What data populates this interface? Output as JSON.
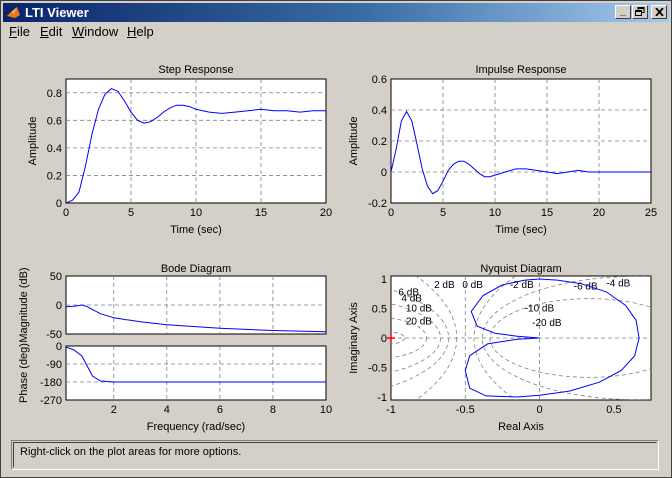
{
  "window": {
    "title": "LTI Viewer",
    "controls": {
      "minimize": "_",
      "restore": "🗗",
      "close": "✕"
    }
  },
  "menu": {
    "items": [
      {
        "label": "File",
        "mnemonic": "F"
      },
      {
        "label": "Edit",
        "mnemonic": "E"
      },
      {
        "label": "Window",
        "mnemonic": "W"
      },
      {
        "label": "Help",
        "mnemonic": "H"
      }
    ]
  },
  "plots": {
    "step": {
      "title": "Step Response",
      "xlabel": "Time (sec)",
      "ylabel": "Amplitude",
      "xticks": [
        "0",
        "5",
        "10",
        "15",
        "20"
      ],
      "yticks": [
        "0",
        "0.2",
        "0.4",
        "0.6",
        "0.8"
      ]
    },
    "impulse": {
      "title": "Impulse Response",
      "xlabel": "Time (sec)",
      "ylabel": "Amplitude",
      "xticks": [
        "0",
        "5",
        "10",
        "15",
        "20",
        "25"
      ],
      "yticks": [
        "-0.2",
        "0",
        "0.2",
        "0.4",
        "0.6"
      ]
    },
    "bode": {
      "title": "Bode Diagram",
      "xlabel": "Frequency (rad/sec)",
      "ylabel_mag": "Magnitude (dB)",
      "ylabel_phase": "Phase (deg)",
      "xticks": [
        "2",
        "4",
        "6",
        "8",
        "10"
      ],
      "mag_yticks": [
        "50",
        "0",
        "-50"
      ],
      "phase_yticks": [
        "0",
        "-90",
        "-180",
        "-270"
      ]
    },
    "nyquist": {
      "title": "Nyquist Diagram",
      "xlabel": "Real Axis",
      "ylabel": "Imaginary Axis",
      "xticks": [
        "-1",
        "-0.5",
        "0",
        "0.5"
      ],
      "yticks": [
        "1",
        "0.5",
        "0",
        "-0.5",
        "-1"
      ],
      "db_labels": [
        "0 dB",
        "2 dB",
        "-2 dB",
        "4 dB",
        "-4 dB",
        "6 dB",
        "-6 dB",
        "10 dB",
        "-10 dB",
        "20 dB",
        "-20 dB"
      ]
    }
  },
  "status": {
    "text": "Right-click on the plot areas for more options."
  },
  "chart_data": [
    {
      "type": "line",
      "title": "Step Response",
      "xlabel": "Time (sec)",
      "ylabel": "Amplitude",
      "xlim": [
        0,
        20
      ],
      "ylim": [
        0,
        0.9
      ],
      "x": [
        0,
        0.5,
        1,
        1.5,
        2,
        2.5,
        3,
        3.5,
        4,
        4.5,
        5,
        5.5,
        6,
        6.5,
        7,
        7.5,
        8,
        8.5,
        9,
        9.5,
        10,
        11,
        12,
        13,
        14,
        15,
        16,
        17,
        18,
        19,
        20
      ],
      "y": [
        0,
        0.02,
        0.08,
        0.27,
        0.5,
        0.68,
        0.79,
        0.83,
        0.81,
        0.74,
        0.66,
        0.6,
        0.58,
        0.59,
        0.62,
        0.66,
        0.69,
        0.71,
        0.71,
        0.7,
        0.68,
        0.66,
        0.65,
        0.66,
        0.67,
        0.68,
        0.67,
        0.67,
        0.66,
        0.67,
        0.67
      ]
    },
    {
      "type": "line",
      "title": "Impulse Response",
      "xlabel": "Time (sec)",
      "ylabel": "Amplitude",
      "xlim": [
        0,
        25
      ],
      "ylim": [
        -0.2,
        0.6
      ],
      "x": [
        0,
        0.5,
        1,
        1.5,
        2,
        2.5,
        3,
        3.5,
        4,
        4.5,
        5,
        5.5,
        6,
        6.5,
        7,
        7.5,
        8,
        8.5,
        9,
        9.5,
        10,
        11,
        12,
        13,
        14,
        15,
        16,
        17,
        18,
        19,
        20,
        22,
        25
      ],
      "y": [
        0,
        0.15,
        0.33,
        0.39,
        0.33,
        0.18,
        0.02,
        -0.09,
        -0.14,
        -0.12,
        -0.06,
        0.01,
        0.05,
        0.07,
        0.07,
        0.05,
        0.02,
        -0.01,
        -0.03,
        -0.03,
        -0.02,
        0.0,
        0.02,
        0.02,
        0.01,
        0.0,
        -0.01,
        0.0,
        0.01,
        0.0,
        0.0,
        0.0,
        0.0
      ]
    },
    {
      "type": "line",
      "title": "Bode Diagram",
      "series": [
        {
          "name": "Magnitude (dB)",
          "x": [
            0.2,
            0.5,
            0.8,
            1.0,
            1.2,
            1.5,
            2,
            3,
            4,
            5,
            6,
            7,
            8,
            9,
            10
          ],
          "y": [
            -3,
            -2,
            0,
            -3,
            -8,
            -15,
            -22,
            -29,
            -34,
            -37,
            -40,
            -42,
            -44,
            -45,
            -46
          ],
          "ylim": [
            -50,
            50
          ]
        },
        {
          "name": "Phase (deg)",
          "x": [
            0.2,
            0.5,
            0.8,
            1.0,
            1.2,
            1.5,
            2,
            3,
            4,
            5,
            6,
            7,
            8,
            9,
            10
          ],
          "y": [
            -5,
            -20,
            -50,
            -100,
            -150,
            -175,
            -180,
            -180,
            -180,
            -180,
            -180,
            -180,
            -180,
            -180,
            -180
          ],
          "ylim": [
            -270,
            0
          ]
        }
      ],
      "xlabel": "Frequency (rad/sec)",
      "xlim": [
        0.2,
        10
      ]
    },
    {
      "type": "line",
      "title": "Nyquist Diagram",
      "xlabel": "Real Axis",
      "ylabel": "Imaginary Axis",
      "xlim": [
        -1,
        0.75
      ],
      "ylim": [
        -1.05,
        1.05
      ],
      "x": [
        0,
        -0.15,
        -0.35,
        -0.47,
        -0.5,
        -0.47,
        -0.36,
        -0.15,
        0,
        0.2,
        0.4,
        0.55,
        0.64,
        0.67,
        0.65,
        0.58,
        0.45,
        0.28,
        0.12,
        0,
        -0.1,
        -0.25,
        -0.38,
        -0.46,
        -0.42,
        -0.3,
        -0.15,
        0
      ],
      "y": [
        0,
        -0.02,
        -0.1,
        -0.3,
        -0.55,
        -0.85,
        -0.98,
        -1.0,
        -0.97,
        -0.9,
        -0.75,
        -0.55,
        -0.3,
        0,
        0.3,
        0.55,
        0.78,
        0.92,
        0.98,
        1.0,
        0.98,
        0.9,
        0.72,
        0.45,
        0.2,
        0.08,
        0.03,
        0
      ],
      "critical_point": [
        -1,
        0
      ]
    }
  ]
}
